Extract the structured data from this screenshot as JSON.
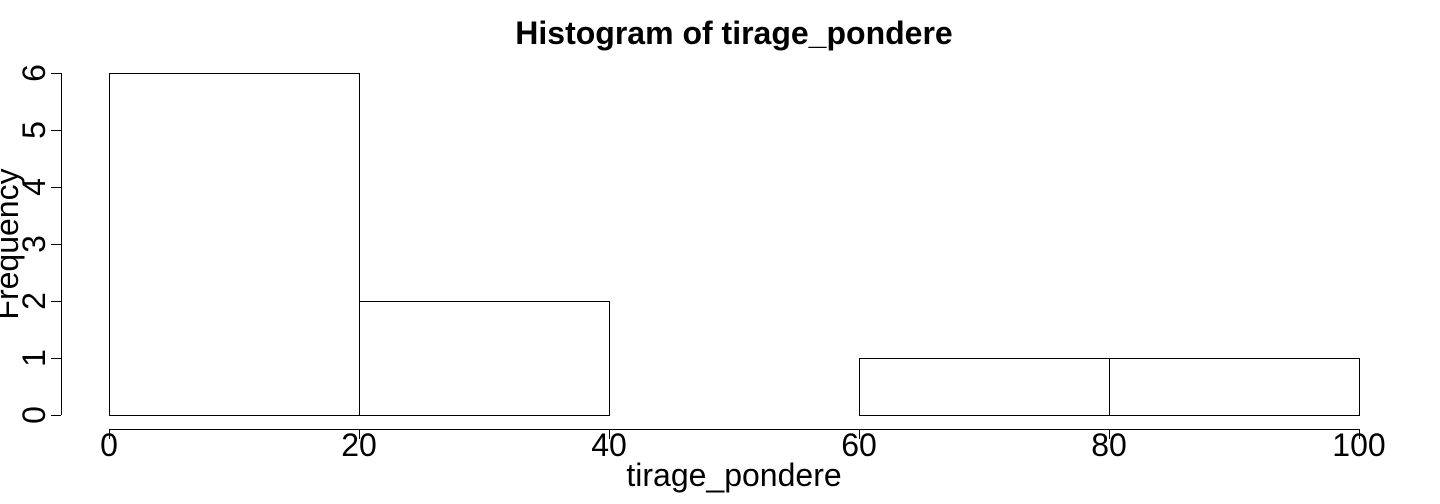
{
  "chart_data": {
    "type": "bar",
    "title": "Histogram of tirage_pondere",
    "xlabel": "tirage_pondere",
    "ylabel": "Frequency",
    "bins": [
      {
        "start": 0,
        "end": 20,
        "count": 6
      },
      {
        "start": 20,
        "end": 40,
        "count": 2
      },
      {
        "start": 40,
        "end": 60,
        "count": 0
      },
      {
        "start": 60,
        "end": 80,
        "count": 1
      },
      {
        "start": 80,
        "end": 100,
        "count": 1
      }
    ],
    "x_ticks": [
      "0",
      "20",
      "40",
      "60",
      "80",
      "100"
    ],
    "y_ticks": [
      "0",
      "1",
      "2",
      "3",
      "4",
      "5",
      "6"
    ],
    "xlim": [
      0,
      100
    ],
    "ylim": [
      0,
      6
    ],
    "grid": false,
    "colors": {
      "bar_fill": "#ffffff",
      "bar_stroke": "#000000"
    }
  }
}
